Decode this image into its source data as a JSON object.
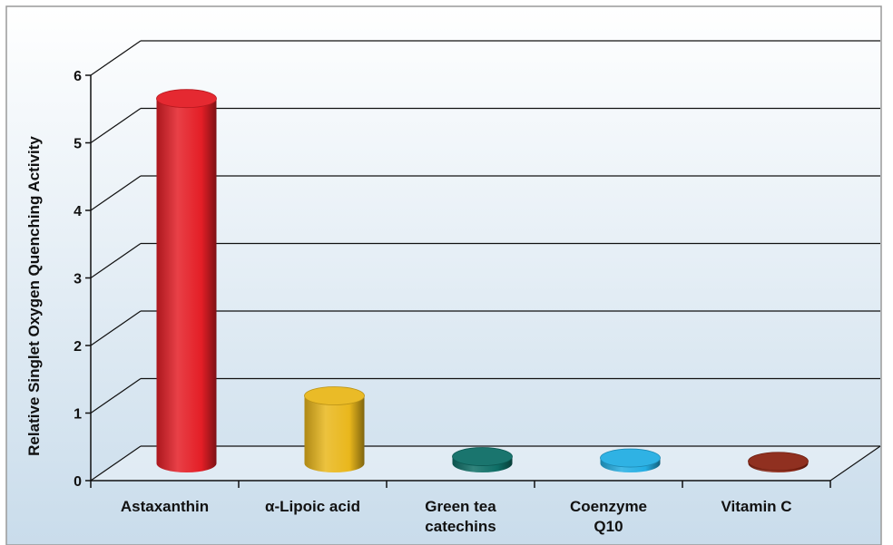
{
  "chart_data": {
    "type": "bar",
    "categories": [
      [
        "Astaxanthin"
      ],
      [
        "α-Lipoic acid"
      ],
      [
        "Green tea",
        "catechins"
      ],
      [
        "Coenzyme",
        "Q10"
      ],
      [
        "Vitamin C"
      ]
    ],
    "values": [
      5.4,
      1.0,
      0.1,
      0.08,
      0.03
    ],
    "bar_colors": [
      "#e41e26",
      "#e9b71c",
      "#0e6e66",
      "#24aee3",
      "#8a2514"
    ],
    "ylabel": "Relative Singlet Oxygen Quenching Activity",
    "xlabel": "",
    "ylim": [
      0,
      6
    ],
    "yticks": [
      "0",
      "1",
      "2",
      "3",
      "4",
      "5",
      "6"
    ],
    "grid": true,
    "style": "3d-cylinder",
    "background": "#dde9f2",
    "gridline_color": "#111111"
  }
}
